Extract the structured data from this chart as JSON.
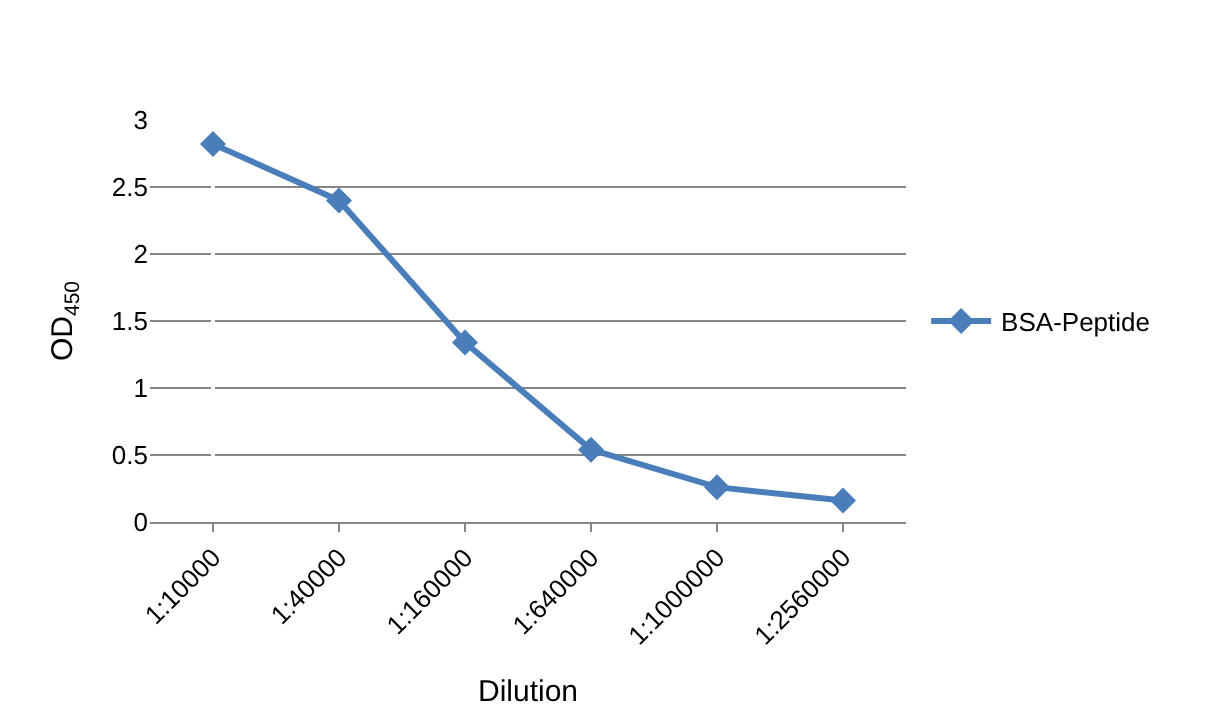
{
  "chart_data": {
    "type": "line",
    "xlabel": "Dilution",
    "ylabel": "OD$_{450}$",
    "categories": [
      "1:10000",
      "1:40000",
      "1:160000",
      "1:640000",
      "1:1000000",
      "1:2560000"
    ],
    "series": [
      {
        "name": "BSA-Peptide",
        "color": "#4a7ebb",
        "values": [
          2.82,
          2.4,
          1.34,
          0.54,
          0.26,
          0.16
        ]
      }
    ],
    "ylim": [
      0,
      3
    ],
    "yticks": [
      0,
      0.5,
      1,
      1.5,
      2,
      2.5,
      3
    ],
    "grid": "y",
    "legend": "right",
    "marker": "diamond",
    "line_style": "solid"
  }
}
